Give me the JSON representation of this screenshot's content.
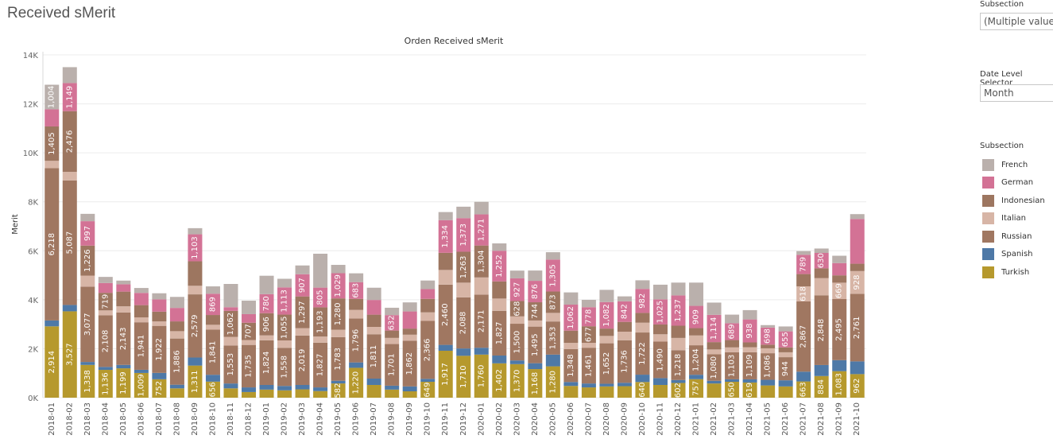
{
  "page": {
    "title": "Received sMerit"
  },
  "filters": {
    "subsection_label": "Subsection",
    "subsection_value": "(Multiple values)",
    "date_level_label": "Date Level Selector",
    "date_level_value": "Month"
  },
  "legend": {
    "title": "Subsection",
    "items": [
      {
        "name": "French",
        "color": "#bab0ac"
      },
      {
        "name": "German",
        "color": "#d37295"
      },
      {
        "name": "Indonesian",
        "color": "#9d7660"
      },
      {
        "name": "Italian",
        "color": "#d7b5a6"
      },
      {
        "name": "Russian",
        "color": "#a07761"
      },
      {
        "name": "Spanish",
        "color": "#4e79a7"
      },
      {
        "name": "Turkish",
        "color": "#b6992d"
      }
    ]
  },
  "chart_data": {
    "type": "bar",
    "stacked": true,
    "title": "Orden Received sMerit",
    "ylabel": "Merit",
    "xlabel": "",
    "ylim": [
      0,
      14000
    ],
    "yticks": [
      "0K",
      "2K",
      "4K",
      "6K",
      "8K",
      "10K",
      "12K",
      "14K"
    ],
    "grid": true,
    "categories": [
      "2018-01",
      "2018-02",
      "2018-03",
      "2018-04",
      "2018-05",
      "2018-06",
      "2018-07",
      "2018-08",
      "2018-09",
      "2018-10",
      "2018-11",
      "2018-12",
      "2019-01",
      "2019-02",
      "2019-03",
      "2019-04",
      "2019-05",
      "2019-06",
      "2019-07",
      "2019-08",
      "2019-09",
      "2019-10",
      "2019-11",
      "2019-12",
      "2020-01",
      "2020-02",
      "2020-03",
      "2020-04",
      "2020-05",
      "2020-06",
      "2020-07",
      "2020-08",
      "2020-09",
      "2020-10",
      "2020-11",
      "2020-12",
      "2021-01",
      "2021-02",
      "2021-03",
      "2021-04",
      "2021-05",
      "2021-06",
      "2021-07",
      "2021-08",
      "2021-09",
      "2021-10"
    ],
    "series": [
      {
        "name": "Turkish",
        "color": "#b6992d",
        "values": [
          2914,
          3527,
          1338,
          1136,
          1199,
          1009,
          752,
          380,
          1311,
          656,
          380,
          230,
          330,
          300,
          340,
          270,
          582,
          1220,
          520,
          330,
          260,
          649,
          1917,
          1710,
          1760,
          1402,
          1370,
          1168,
          1280,
          480,
          420,
          460,
          470,
          640,
          520,
          602,
          757,
          580,
          650,
          619,
          500,
          460,
          663,
          884,
          1083,
          962
        ],
        "labels": [
          "2,914",
          "3,527",
          "1,338",
          "1,136",
          "1,199",
          "1,009",
          "752",
          "",
          "1,311",
          "656",
          "",
          "",
          "",
          "",
          "",
          "",
          "582",
          "1,220",
          "",
          "",
          "",
          "649",
          "1,917",
          "1,710",
          "1,760",
          "1,402",
          "1,370",
          "1,168",
          "1,280",
          "",
          "",
          "",
          "",
          "640",
          "",
          "602",
          "757",
          "",
          "650",
          "619",
          "",
          "",
          "663",
          "884",
          "1,083",
          "962"
        ]
      },
      {
        "name": "Spanish",
        "color": "#4e79a7",
        "values": [
          240,
          260,
          120,
          120,
          140,
          130,
          260,
          150,
          330,
          280,
          200,
          190,
          190,
          180,
          180,
          150,
          110,
          220,
          260,
          160,
          200,
          120,
          240,
          300,
          280,
          320,
          150,
          240,
          480,
          160,
          160,
          110,
          140,
          300,
          280,
          120,
          180,
          110,
          100,
          130,
          230,
          250,
          400,
          450,
          450,
          520
        ]
      },
      {
        "name": "Russian",
        "color": "#a07761",
        "values": [
          6218,
          5087,
          3077,
          2108,
          2143,
          1941,
          1922,
          1886,
          2579,
          1841,
          1553,
          1735,
          1824,
          1558,
          2019,
          1827,
          1783,
          1796,
          1811,
          1701,
          1862,
          2366,
          2460,
          2088,
          2171,
          1827,
          1500,
          1495,
          1353,
          1348,
          1461,
          1652,
          1736,
          1722,
          1490,
          1218,
          1204,
          1080,
          1103,
          1109,
          1086,
          944,
          2867,
          2848,
          2495,
          2761
        ],
        "labels": [
          "6,218",
          "5,087",
          "3,077",
          "2,108",
          "2,143",
          "1,941",
          "1,922",
          "1,886",
          "2,579",
          "1,841",
          "1,553",
          "1,735",
          "1,824",
          "1,558",
          "2,019",
          "1,827",
          "1,783",
          "1,796",
          "1,811",
          "1,701",
          "1,862",
          "2,366",
          "2,460",
          "2,088",
          "2,171",
          "1,827",
          "1,500",
          "1,495",
          "1,353",
          "1,348",
          "1,461",
          "1,652",
          "1,736",
          "1,722",
          "1,490",
          "1,218",
          "1,204",
          "1,080",
          "1,103",
          "1,109",
          "1,086",
          "944",
          "2,867",
          "2,848",
          "2,495",
          "2,761"
        ]
      },
      {
        "name": "Italian",
        "color": "#d7b5a6",
        "values": [
          300,
          350,
          450,
          200,
          250,
          200,
          180,
          300,
          350,
          200,
          350,
          200,
          200,
          300,
          300,
          250,
          300,
          350,
          300,
          250,
          250,
          350,
          600,
          600,
          700,
          500,
          300,
          250,
          350,
          250,
          200,
          300,
          350,
          400,
          300,
          500,
          400,
          200,
          200,
          200,
          200,
          200,
          618,
          700,
          669,
          928
        ],
        "labels": [
          "",
          "",
          "",
          "",
          "",
          "",
          "",
          "",
          "",
          "",
          "",
          "",
          "",
          "",
          "",
          "",
          "",
          "",
          "",
          "",
          "",
          "",
          "",
          "",
          "",
          "",
          "",
          "",
          "",
          "",
          "",
          "",
          "",
          "",
          "",
          "",
          "",
          "",
          "",
          "",
          "",
          "",
          "618",
          "",
          "669",
          "928"
        ]
      },
      {
        "name": "Indonesian",
        "color": "#9d7660",
        "values": [
          1405,
          2476,
          1226,
          719,
          600,
          500,
          400,
          400,
          1000,
          400,
          1062,
          707,
          906,
          1055,
          1297,
          1193,
          1280,
          450,
          500,
          300,
          250,
          550,
          700,
          1263,
          1304,
          700,
          628,
          744,
          873,
          500,
          677,
          300,
          400,
          400,
          400,
          500,
          300,
          300,
          300,
          200,
          150,
          200,
          500,
          400,
          300,
          300
        ],
        "labels": [
          "1,405",
          "2,476",
          "1,226",
          "719",
          "",
          "",
          "",
          "",
          "",
          "",
          "1,062",
          "707",
          "906",
          "1,055",
          "1,297",
          "1,193",
          "1,280",
          "",
          "",
          "",
          "",
          "",
          "",
          "1,263",
          "1,304",
          "",
          "628",
          "744",
          "873",
          "",
          "677",
          "",
          "",
          "",
          "",
          "",
          "",
          "",
          "",
          "",
          "",
          "",
          "",
          "",
          "",
          ""
        ]
      },
      {
        "name": "German",
        "color": "#d37295",
        "values": [
          700,
          1149,
          997,
          400,
          300,
          500,
          500,
          550,
          1103,
          869,
          150,
          350,
          780,
          1113,
          907,
          805,
          1029,
          683,
          600,
          632,
          700,
          400,
          1334,
          1373,
          1271,
          1252,
          927,
          876,
          1305,
          1062,
          778,
          1082,
          842,
          982,
          1025,
          1237,
          909,
          1114,
          689,
          938,
          698,
          655,
          789,
          630,
          500,
          1826
        ],
        "labels": [
          "",
          "1,149",
          "997",
          "",
          "",
          "",
          "",
          "",
          "1,103",
          "869",
          "",
          "",
          "780",
          "1,113",
          "907",
          "805",
          "1,029",
          "683",
          "",
          "632",
          "",
          "",
          "1,334",
          "1,373",
          "1,271",
          "1,252",
          "927",
          "876",
          "1,305",
          "1,062",
          "778",
          "1,082",
          "842",
          "982",
          "1,025",
          "1,237",
          "909",
          "1,114",
          "689",
          "938",
          "698",
          "655",
          "789",
          "630",
          "",
          ""
        ]
      },
      {
        "name": "French",
        "color": "#bab0ac",
        "values": [
          1004,
          650,
          300,
          250,
          150,
          200,
          250,
          450,
          250,
          300,
          950,
          550,
          750,
          350,
          357,
          1385,
          340,
          360,
          500,
          300,
          370,
          350,
          330,
          466,
          514,
          300,
          315,
          420,
          300,
          500,
          300,
          500,
          200,
          350,
          600,
          523,
          950,
          500,
          350,
          380,
          100,
          200,
          150,
          180,
          300,
          200
        ],
        "labels": [
          "1,004",
          "",
          "",
          "",
          "",
          "",
          "",
          "",
          "",
          "",
          "",
          "",
          "",
          "",
          "",
          "",
          "",
          "",
          "",
          "",
          "",
          "",
          "",
          "",
          "",
          "",
          "",
          "",
          "",
          "",
          "",
          "",
          "",
          "",
          "",
          "",
          "",
          "",
          "",
          "",
          "",
          "",
          "",
          "",
          "",
          ""
        ]
      }
    ]
  }
}
